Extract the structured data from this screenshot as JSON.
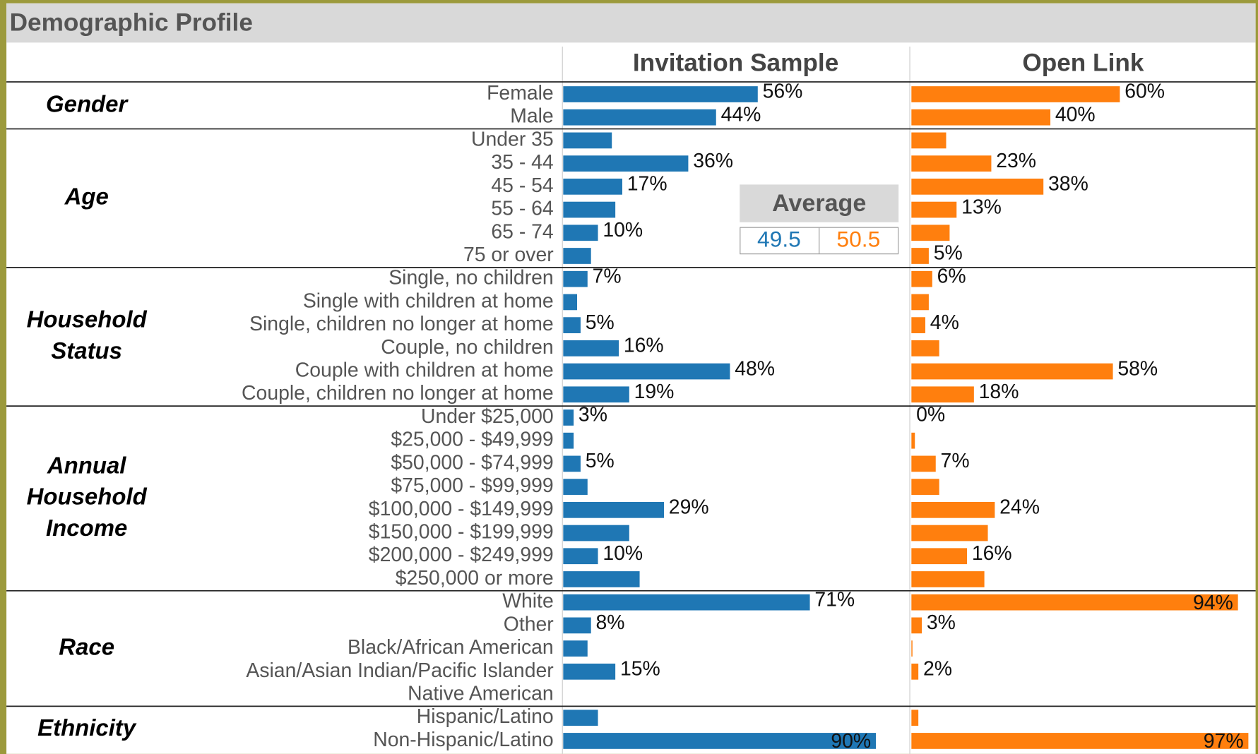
{
  "chart_data": {
    "type": "bar",
    "title": "Demographic Profile",
    "xlim": [
      0,
      100
    ],
    "groups": [
      {
        "label": [
          "Gender"
        ],
        "categories": [
          "Female",
          "Male"
        ]
      },
      {
        "label": [
          "Age"
        ],
        "categories": [
          "Under 35",
          "35 - 44",
          "45 - 54",
          "55 - 64",
          "65 - 74",
          "75 or over"
        ]
      },
      {
        "label": [
          "Household",
          "Status"
        ],
        "categories": [
          "Single, no children",
          "Single with children at home",
          "Single, children no longer at home",
          "Couple, no children",
          "Couple with children at home",
          "Couple, children no longer at home"
        ]
      },
      {
        "label": [
          "Annual",
          "Household",
          "Income"
        ],
        "categories": [
          "Under $25,000",
          "$25,000 - $49,999",
          "$50,000 - $74,999",
          "$75,000 - $99,999",
          "$100,000 - $149,999",
          "$150,000 - $199,999",
          "$200,000 - $249,999",
          "$250,000 or more"
        ]
      },
      {
        "label": [
          "Race"
        ],
        "categories": [
          "White",
          "Other",
          "Black/African American",
          "Asian/Asian Indian/Pacific Islander",
          "Native American"
        ]
      },
      {
        "label": [
          "Ethnicity"
        ],
        "categories": [
          "Hispanic/Latino",
          "Non-Hispanic/Latino"
        ]
      }
    ],
    "series": [
      {
        "name": "Invitation Sample",
        "color": "#1f77b4",
        "values": [
          [
            56,
            44
          ],
          [
            14,
            36,
            17,
            15,
            10,
            8
          ],
          [
            7,
            4,
            5,
            16,
            48,
            19
          ],
          [
            3,
            3,
            5,
            7,
            29,
            19,
            10,
            22
          ],
          [
            71,
            8,
            7,
            15,
            0
          ],
          [
            10,
            90
          ]
        ],
        "value_labels": [
          [
            "56%",
            "44%"
          ],
          [
            null,
            "36%",
            "17%",
            null,
            "10%",
            null
          ],
          [
            "7%",
            null,
            "5%",
            "16%",
            "48%",
            "19%"
          ],
          [
            "3%",
            null,
            "5%",
            null,
            "29%",
            null,
            "10%",
            null
          ],
          [
            "71%",
            "8%",
            null,
            "15%",
            null
          ],
          [
            null,
            "90%"
          ]
        ]
      },
      {
        "name": "Open Link",
        "color": "#ff7f0e",
        "values": [
          [
            60,
            40
          ],
          [
            10,
            23,
            38,
            13,
            11,
            5
          ],
          [
            6,
            5,
            4,
            8,
            58,
            18
          ],
          [
            0,
            1,
            7,
            8,
            24,
            22,
            16,
            21
          ],
          [
            94,
            3,
            0.3,
            2,
            0
          ],
          [
            2,
            97
          ]
        ],
        "value_labels": [
          [
            "60%",
            "40%"
          ],
          [
            null,
            "23%",
            "38%",
            "13%",
            null,
            "5%"
          ],
          [
            "6%",
            null,
            "4%",
            null,
            "58%",
            "18%"
          ],
          [
            "0%",
            null,
            "7%",
            null,
            "24%",
            null,
            "16%",
            null
          ],
          [
            "94%",
            "3%",
            null,
            "2%",
            null
          ],
          [
            null,
            "97%"
          ]
        ]
      }
    ],
    "average": {
      "label": "Average",
      "values": [
        49.5,
        50.5
      ]
    }
  }
}
